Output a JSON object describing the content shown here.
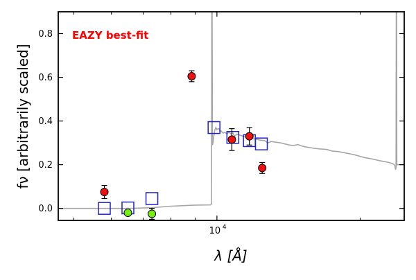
{
  "chart_data": {
    "type": "scatter",
    "annotation": "EAZY best-fit",
    "xlabel": "λ [Å]",
    "ylabel": "fν [arbitrarily scaled]",
    "x_tick_labels": [
      {
        "value": 10000,
        "label": "10",
        "exponent": "4"
      }
    ],
    "y_tick_labels": [
      "0.0",
      "0.2",
      "0.4",
      "0.6",
      "0.8"
    ],
    "x_scale": "log",
    "xlim": [
      4640,
      24750
    ],
    "ylim": [
      -0.055,
      0.9
    ],
    "grid": false,
    "colors": {
      "model_line": "#a6a6a6",
      "model_photometry": "#1f1fcc",
      "detections": "#ee1111",
      "nondetections": "#77ee11",
      "annotation": "#ff0000",
      "axes": "#000000"
    },
    "series": [
      {
        "kind": "line",
        "points": [
          [
            4640,
            0.0
          ],
          [
            6500,
            0.0
          ],
          [
            7300,
            0.003
          ],
          [
            8000,
            0.01
          ],
          [
            9000,
            0.015
          ],
          [
            9700,
            0.016
          ],
          [
            9740,
            0.02
          ],
          [
            9755,
            0.9
          ],
          [
            9770,
            0.9
          ],
          [
            9785,
            0.29
          ],
          [
            9810,
            0.3
          ],
          [
            9850,
            0.33
          ],
          [
            9900,
            0.36
          ],
          [
            9950,
            0.37
          ],
          [
            10000,
            0.36
          ],
          [
            10050,
            0.365
          ],
          [
            10100,
            0.365
          ],
          [
            10150,
            0.35
          ],
          [
            10200,
            0.355
          ],
          [
            10300,
            0.345
          ],
          [
            10400,
            0.348
          ],
          [
            10500,
            0.34
          ],
          [
            10600,
            0.35
          ],
          [
            10700,
            0.34
          ],
          [
            10800,
            0.345
          ],
          [
            10900,
            0.33
          ],
          [
            11000,
            0.34
          ],
          [
            11200,
            0.335
          ],
          [
            11400,
            0.328
          ],
          [
            11600,
            0.325
          ],
          [
            11800,
            0.32
          ],
          [
            12000,
            0.318
          ],
          [
            12300,
            0.313
          ],
          [
            12600,
            0.31
          ],
          [
            12800,
            0.3
          ],
          [
            13000,
            0.306
          ],
          [
            13300,
            0.303
          ],
          [
            13600,
            0.3
          ],
          [
            13900,
            0.295
          ],
          [
            14200,
            0.29
          ],
          [
            14500,
            0.288
          ],
          [
            14800,
            0.292
          ],
          [
            15100,
            0.285
          ],
          [
            15500,
            0.28
          ],
          [
            16000,
            0.275
          ],
          [
            16500,
            0.272
          ],
          [
            17000,
            0.27
          ],
          [
            17500,
            0.262
          ],
          [
            18000,
            0.26
          ],
          [
            18500,
            0.255
          ],
          [
            19000,
            0.25
          ],
          [
            19500,
            0.245
          ],
          [
            20000,
            0.238
          ],
          [
            20500,
            0.232
          ],
          [
            21000,
            0.228
          ],
          [
            21500,
            0.223
          ],
          [
            22000,
            0.218
          ],
          [
            22500,
            0.214
          ],
          [
            23000,
            0.21
          ],
          [
            23400,
            0.205
          ],
          [
            23600,
            0.2
          ],
          [
            23680,
            0.19
          ],
          [
            23720,
            0.18
          ],
          [
            23760,
            0.18
          ],
          [
            23790,
            0.19
          ],
          [
            23820,
            0.9
          ],
          [
            23860,
            0.9
          ],
          [
            23880,
            0.2
          ],
          [
            24100,
            0.2
          ],
          [
            24750,
            0.2
          ]
        ]
      },
      {
        "kind": "model_photometry",
        "points": [
          [
            5800,
            0.0
          ],
          [
            6500,
            0.002
          ],
          [
            7300,
            0.045
          ],
          [
            9860,
            0.37
          ],
          [
            10800,
            0.325
          ],
          [
            11700,
            0.31
          ],
          [
            12400,
            0.295
          ]
        ]
      },
      {
        "kind": "detections",
        "points": [
          {
            "x": 5800,
            "y": 0.075,
            "err": 0.03
          },
          {
            "x": 8850,
            "y": 0.605,
            "err": 0.025
          },
          {
            "x": 10750,
            "y": 0.315,
            "err": 0.05
          },
          {
            "x": 11700,
            "y": 0.33,
            "err": 0.04
          },
          {
            "x": 12450,
            "y": 0.185,
            "err": 0.025
          }
        ]
      },
      {
        "kind": "nondetections",
        "points": [
          {
            "x": 6500,
            "y": -0.02,
            "err": 0.012
          },
          {
            "x": 7300,
            "y": -0.025,
            "err": 0.025
          }
        ]
      }
    ]
  }
}
